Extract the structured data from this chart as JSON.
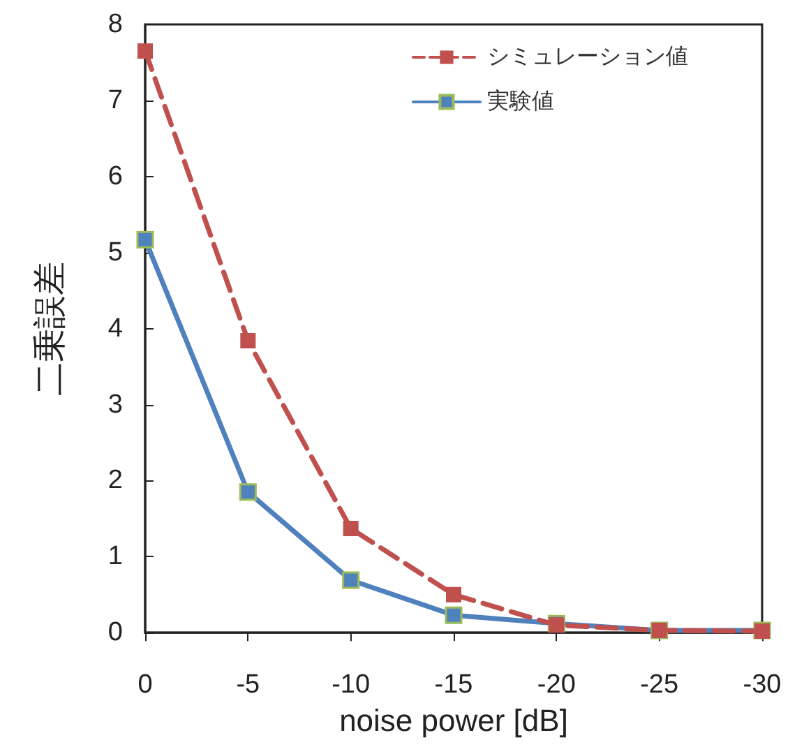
{
  "chart_data": {
    "type": "line",
    "xlabel": "noise power [dB]",
    "ylabel": "二乗誤差",
    "x": [
      0,
      -5,
      -10,
      -15,
      -20,
      -25,
      -30
    ],
    "xlim": [
      0,
      -30
    ],
    "xticks": [
      0,
      -5,
      -10,
      -15,
      -20,
      -25,
      -30
    ],
    "ylim": [
      0,
      8
    ],
    "yticks": [
      0,
      1,
      2,
      3,
      4,
      5,
      6,
      7,
      8
    ],
    "grid": false,
    "legend": "top right",
    "marker": "square",
    "series": [
      {
        "name": "シミュレーション値",
        "color": "#c0504d",
        "line_style": "dashed",
        "values": [
          7.65,
          3.84,
          1.37,
          0.5,
          0.1,
          0.03,
          0.02
        ]
      },
      {
        "name": "実験値",
        "color": "#4f81bd",
        "line_style": "solid",
        "values": [
          5.17,
          1.85,
          0.69,
          0.23,
          0.12,
          0.03,
          0.03
        ]
      }
    ]
  }
}
